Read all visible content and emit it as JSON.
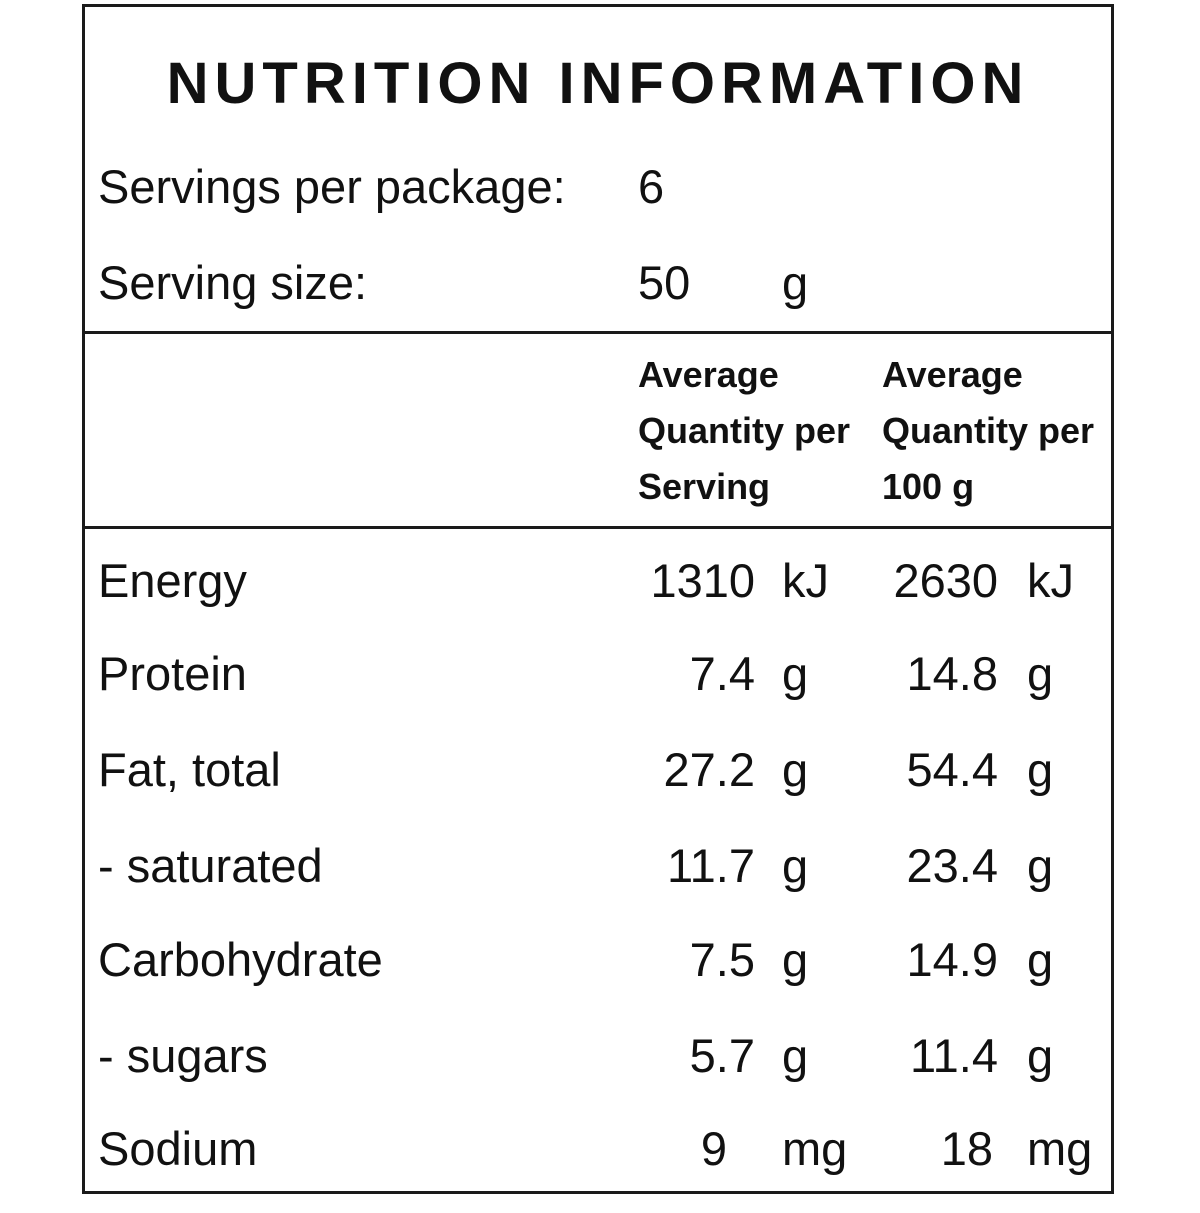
{
  "title": "NUTRITION INFORMATION",
  "servings_per_package": {
    "label": "Servings per package:",
    "value": "6"
  },
  "serving_size": {
    "label": "Serving size:",
    "value": "50",
    "unit": "g"
  },
  "columns": {
    "per_serving": [
      "Average",
      "Quantity per",
      "Serving"
    ],
    "per_100g": [
      "Average",
      "Quantity per",
      "100 g"
    ]
  },
  "nutrients": [
    {
      "name": "Energy",
      "per_serving": "1310",
      "per_serving_unit": "kJ",
      "per_100g": "2630",
      "per_100g_unit": "kJ"
    },
    {
      "name": "Protein",
      "per_serving": "7.4",
      "per_serving_unit": "g",
      "per_100g": "14.8",
      "per_100g_unit": "g"
    },
    {
      "name": "Fat, total",
      "per_serving": "27.2",
      "per_serving_unit": "g",
      "per_100g": "54.4",
      "per_100g_unit": "g"
    },
    {
      "name": "- saturated",
      "per_serving": "11.7",
      "per_serving_unit": "g",
      "per_100g": "23.4",
      "per_100g_unit": "g"
    },
    {
      "name": "Carbohydrate",
      "per_serving": "7.5",
      "per_serving_unit": "g",
      "per_100g": "14.9",
      "per_100g_unit": "g"
    },
    {
      "name": "- sugars",
      "per_serving": "5.7",
      "per_serving_unit": "g",
      "per_100g": "11.4",
      "per_100g_unit": "g"
    },
    {
      "name": "Sodium",
      "per_serving": "9",
      "per_serving_unit": "mg",
      "per_100g": "18",
      "per_100g_unit": "mg"
    }
  ]
}
